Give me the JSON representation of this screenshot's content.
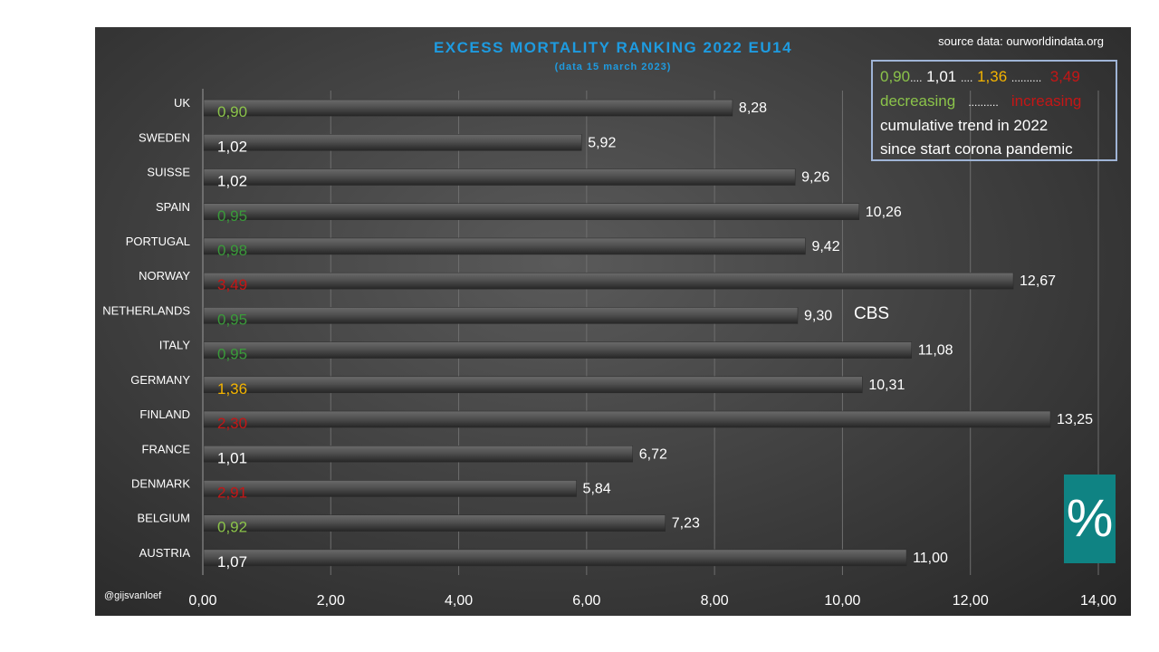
{
  "chart_data": {
    "type": "bar",
    "orientation": "horizontal",
    "title": "EXCESS  MORTALITY  RANKING  2022  EU14",
    "subtitle": "(data  15  march  2023)",
    "categories": [
      "UK",
      "SWEDEN",
      "SUISSE",
      "SPAIN",
      "PORTUGAL",
      "NORWAY",
      "NETHERLANDS",
      "ITALY",
      "GERMANY",
      "FINLAND",
      "FRANCE",
      "DENMARK",
      "BELGIUM",
      "AUSTRIA"
    ],
    "values": [
      8.28,
      5.92,
      9.26,
      10.26,
      9.42,
      12.67,
      9.3,
      11.08,
      10.31,
      13.25,
      6.72,
      5.84,
      7.23,
      11.0
    ],
    "value_labels": [
      "8,28",
      "5,92",
      "9,26",
      "10,26",
      "9,42",
      "12,67",
      "9,30",
      "11,08",
      "10,31",
      "13,25",
      "6,72",
      "5,84",
      "7,23",
      "11,00"
    ],
    "trend_labels": [
      "0,90",
      "1,02",
      "1,02",
      "0,95",
      "0,98",
      "3,49",
      "0,95",
      "0,95",
      "1,36",
      "2,30",
      "1,01",
      "2,91",
      "0,92",
      "1,07"
    ],
    "trend_colors": [
      "#8bc34a",
      "#ffffff",
      "#ffffff",
      "#3a9a3a",
      "#3a9a3a",
      "#c41616",
      "#3a9a3a",
      "#3a9a3a",
      "#f4b400",
      "#c41616",
      "#ffffff",
      "#c41616",
      "#8bc34a",
      "#ffffff"
    ],
    "xlim": [
      0,
      14
    ],
    "xticks": [
      "0,00",
      "2,00",
      "4,00",
      "6,00",
      "8,00",
      "10,00",
      "12,00",
      "14,00"
    ],
    "grid": true
  },
  "source": "source data: ourworldindata.org",
  "credit": "@gijsvanloef",
  "annotation": "CBS",
  "badge": "%",
  "legend": {
    "v1": "0,90",
    "dots1": "....",
    "v2": "1,01",
    "dots2": "....",
    "v3": "1,36",
    "dots3": "..........",
    "v4": "3,49",
    "decreasing": "decreasing",
    "dots4": "..........",
    "increasing": "increasing",
    "line3": "cumulative trend in 2022",
    "line4": "since start corona pandemic"
  },
  "colors": {
    "title": "#1e9be0",
    "decreasing_light": "#8bc34a",
    "decreasing_dark": "#3a9a3a",
    "increasing": "#c41616",
    "moderate": "#f4b400",
    "neutral": "#ffffff",
    "bar": "#4a4a4a",
    "badge": "#0f8383"
  }
}
